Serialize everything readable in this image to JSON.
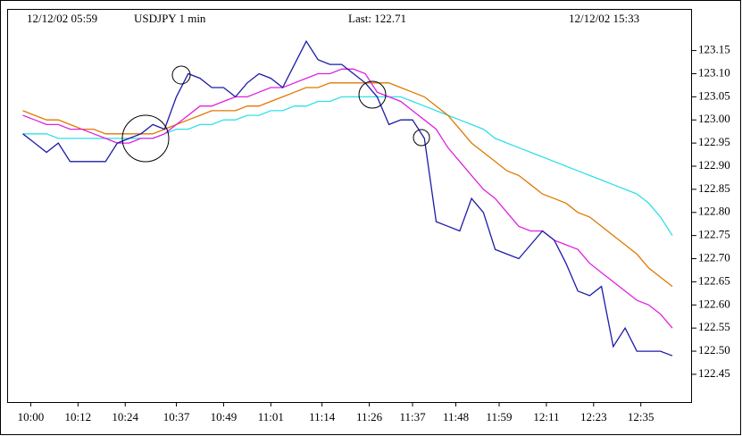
{
  "chart_data": {
    "type": "line",
    "header": {
      "start": "12/12/02 05:59",
      "symbol": "USDJPY 1 min",
      "last": "Last: 122.71",
      "end": "12/12/02 15:33"
    },
    "x": [
      "09:58",
      "10:01",
      "10:04",
      "10:07",
      "10:10",
      "10:13",
      "10:16",
      "10:19",
      "10:22",
      "10:25",
      "10:28",
      "10:31",
      "10:34",
      "10:37",
      "10:40",
      "10:43",
      "10:46",
      "10:49",
      "10:52",
      "10:55",
      "10:58",
      "11:01",
      "11:04",
      "11:07",
      "11:10",
      "11:13",
      "11:16",
      "11:19",
      "11:22",
      "11:25",
      "11:28",
      "11:31",
      "11:34",
      "11:37",
      "11:40",
      "11:43",
      "11:46",
      "11:49",
      "11:52",
      "11:55",
      "11:58",
      "12:01",
      "12:04",
      "12:07",
      "12:10",
      "12:13",
      "12:16",
      "12:19",
      "12:22",
      "12:25",
      "12:28",
      "12:31",
      "12:34",
      "12:37",
      "12:40",
      "12:43"
    ],
    "series": [
      {
        "color": "#cccc00",
        "line": "#1c1ca8",
        "values": [
          122.97,
          122.95,
          122.93,
          122.95,
          122.91,
          122.91,
          122.91,
          122.91,
          122.95,
          122.96,
          122.97,
          122.99,
          122.98,
          123.05,
          123.1,
          123.09,
          123.07,
          123.07,
          123.05,
          123.08,
          123.1,
          123.09,
          123.07,
          123.12,
          123.17,
          123.13,
          123.12,
          123.12,
          123.1,
          123.08,
          123.05,
          122.99,
          123.0,
          123.0,
          122.96,
          122.78,
          122.77,
          122.76,
          122.83,
          122.8,
          122.72,
          122.71,
          122.7,
          122.73,
          122.76,
          122.74,
          122.69,
          122.63,
          122.62,
          122.64,
          122.51,
          122.55,
          122.5,
          122.5,
          122.5,
          122.49
        ]
      },
      {
        "color": "#00e0e0",
        "line": "#30e0e8",
        "values": [
          122.97,
          122.97,
          122.97,
          122.96,
          122.96,
          122.96,
          122.96,
          122.96,
          122.96,
          122.96,
          122.96,
          122.96,
          122.97,
          122.98,
          122.98,
          122.99,
          122.99,
          123.0,
          123.0,
          123.01,
          123.01,
          123.02,
          123.02,
          123.03,
          123.03,
          123.04,
          123.04,
          123.05,
          123.05,
          123.05,
          123.05,
          123.05,
          123.05,
          123.04,
          123.03,
          123.02,
          123.01,
          123.0,
          122.99,
          122.98,
          122.96,
          122.95,
          122.94,
          122.93,
          122.92,
          122.91,
          122.9,
          122.89,
          122.88,
          122.87,
          122.86,
          122.85,
          122.84,
          122.82,
          122.79,
          122.75
        ]
      },
      {
        "color": "#e07800",
        "line": "#e07800",
        "values": [
          123.02,
          123.01,
          123.0,
          123.0,
          122.99,
          122.98,
          122.98,
          122.97,
          122.97,
          122.97,
          122.97,
          122.97,
          122.98,
          122.99,
          123.0,
          123.01,
          123.02,
          123.02,
          123.02,
          123.03,
          123.03,
          123.04,
          123.05,
          123.06,
          123.07,
          123.07,
          123.08,
          123.08,
          123.08,
          123.08,
          123.08,
          123.08,
          123.07,
          123.06,
          123.05,
          123.03,
          123.01,
          122.98,
          122.95,
          122.93,
          122.91,
          122.89,
          122.88,
          122.86,
          122.84,
          122.83,
          122.82,
          122.8,
          122.79,
          122.77,
          122.75,
          122.73,
          122.71,
          122.68,
          122.66,
          122.64
        ]
      },
      {
        "color": "#e020e0",
        "line": "#e020e0",
        "values": [
          123.01,
          123.0,
          122.99,
          122.99,
          122.98,
          122.98,
          122.97,
          122.96,
          122.95,
          122.95,
          122.96,
          122.96,
          122.97,
          122.99,
          123.01,
          123.03,
          123.03,
          123.04,
          123.05,
          123.05,
          123.06,
          123.07,
          123.07,
          123.08,
          123.09,
          123.1,
          123.1,
          123.11,
          123.11,
          123.1,
          123.06,
          123.05,
          123.04,
          123.02,
          123.0,
          122.98,
          122.94,
          122.91,
          122.88,
          122.85,
          122.83,
          122.8,
          122.77,
          122.76,
          122.76,
          122.74,
          122.73,
          122.72,
          122.69,
          122.67,
          122.65,
          122.63,
          122.61,
          122.6,
          122.58,
          122.55
        ]
      }
    ],
    "xlim": [
      "09:54",
      "12:48"
    ],
    "xticks": [
      "10:00",
      "10:12",
      "10:24",
      "10:37",
      "10:49",
      "11:01",
      "11:14",
      "11:26",
      "11:37",
      "11:48",
      "11:59",
      "12:11",
      "12:23",
      "12:35"
    ],
    "ylim": [
      122.39,
      123.24
    ],
    "yticks": [
      123.15,
      {
        "value": 123.1,
        "label": "123.10"
      },
      123.05,
      {
        "value": 123.0,
        "label": "123.00"
      },
      122.95,
      {
        "value": 122.9,
        "label": "122.90"
      },
      122.85,
      {
        "value": 122.8,
        "label": "122.80"
      },
      122.75,
      {
        "value": 122.7,
        "label": "122.70"
      },
      122.65,
      {
        "value": 122.6,
        "label": "122.60"
      },
      122.55,
      {
        "value": 122.5,
        "label": "122.50"
      },
      122.45
    ]
  }
}
